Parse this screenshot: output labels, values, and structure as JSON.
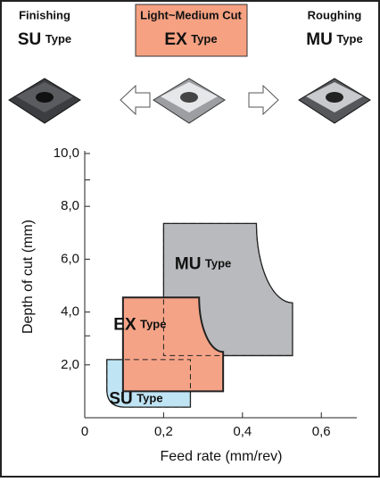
{
  "header": {
    "cards": [
      {
        "caption": "Finishing",
        "label": "SU",
        "sub": "Type"
      },
      {
        "caption": "Light~Medium Cut",
        "label": "EX",
        "sub": "Type"
      },
      {
        "caption": "Roughing",
        "label": "MU",
        "sub": "Type"
      }
    ]
  },
  "chart_data": {
    "type": "region",
    "xlabel": "Feed rate   (mm/rev)",
    "ylabel": "Depth of cut   (mm)",
    "xlim": [
      0,
      0.69
    ],
    "ylim": [
      0,
      10.1
    ],
    "xticks": [
      0,
      {
        "value": 0.2,
        "label": "0,2"
      },
      {
        "value": 0.4,
        "label": "0,4"
      },
      {
        "value": 0.6,
        "label": "0,6"
      }
    ],
    "yticks": [
      {
        "value": 2,
        "label": "2,0"
      },
      {
        "value": 4,
        "label": "4,0"
      },
      {
        "value": 6,
        "label": "6,0"
      },
      {
        "value": 8,
        "label": "8,0"
      },
      {
        "value": 10,
        "label": "10,0"
      }
    ],
    "minor_yticks": [
      3.1,
      9
    ],
    "regions": [
      {
        "label": "SU",
        "sub": "Type",
        "color": "#bfe4f4",
        "x": [
          0.056,
          0.268
        ],
        "y": [
          0.4,
          2.2
        ]
      },
      {
        "label": "MU",
        "sub": "Type",
        "color": "#b9babd",
        "x": [
          0.2,
          0.527
        ],
        "y": [
          2.35,
          7.35
        ]
      },
      {
        "label": "EX",
        "sub": "Type",
        "color": "#f5a387",
        "x": [
          0.097,
          0.351
        ],
        "y": [
          1.0,
          4.55
        ]
      }
    ]
  }
}
